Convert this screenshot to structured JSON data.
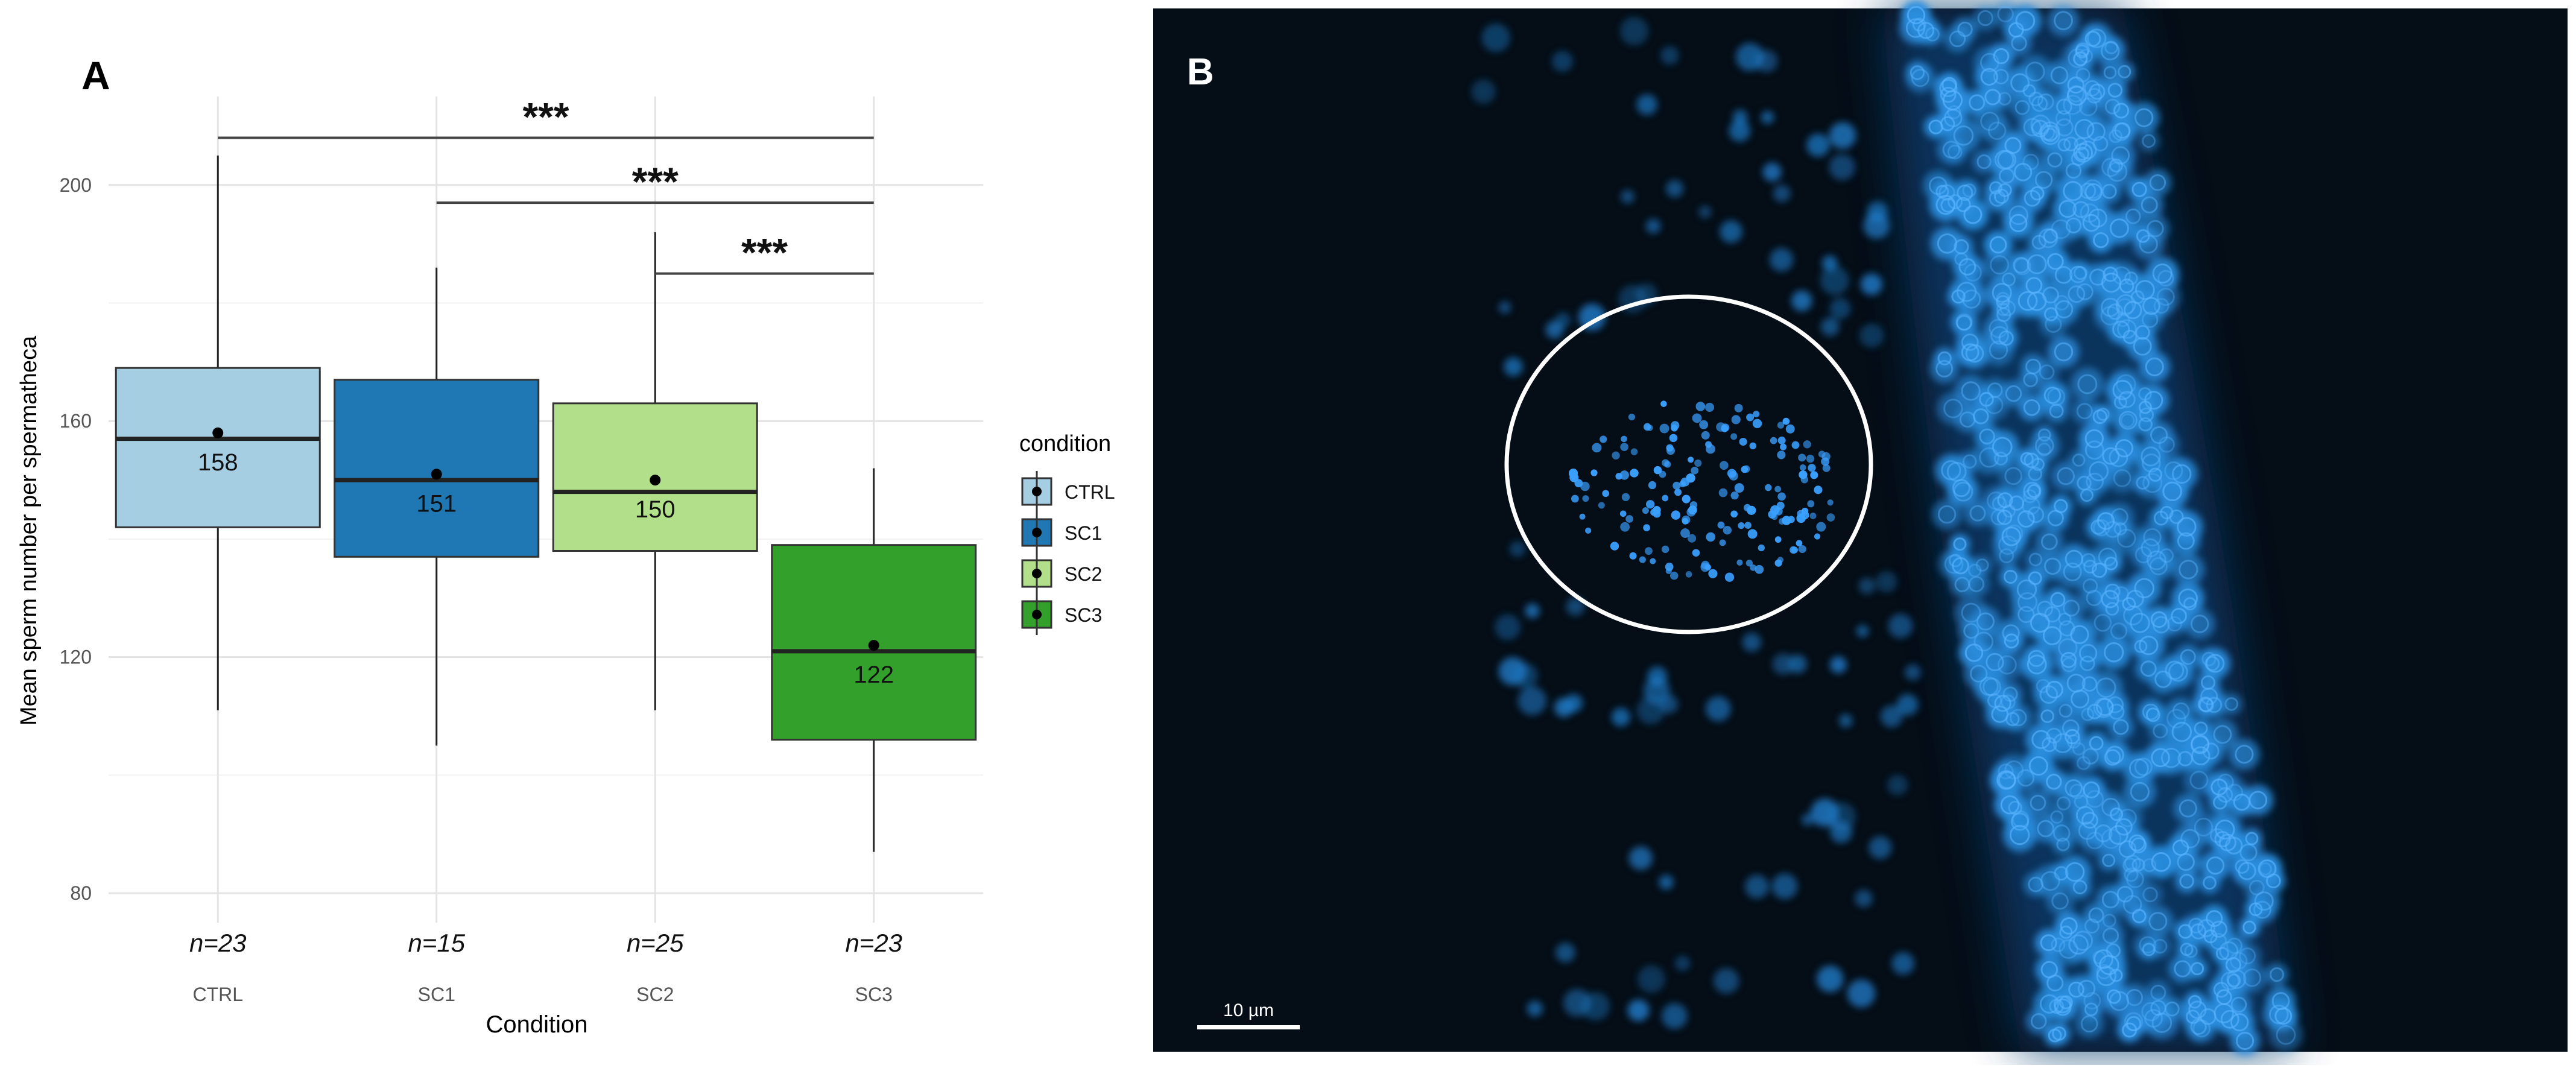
{
  "panels": {
    "a_label": "A",
    "b_label": "B"
  },
  "chart_data": {
    "type": "box",
    "title": "",
    "xlabel": "Condition",
    "ylabel": "Mean sperm number per spermatheca",
    "ylim": [
      75,
      215
    ],
    "yticks": [
      80,
      120,
      160,
      200
    ],
    "grid": true,
    "categories": [
      "CTRL",
      "SC1",
      "SC2",
      "SC3"
    ],
    "boxes": [
      {
        "category": "CTRL",
        "whisker_low": 111,
        "q1": 142,
        "median": 157,
        "q3": 169,
        "whisker_high": 205,
        "mean": 158,
        "mean_label": "158",
        "n_label": "n=23",
        "fill": "#a6cee3"
      },
      {
        "category": "SC1",
        "whisker_low": 105,
        "q1": 137,
        "median": 150,
        "q3": 167,
        "whisker_high": 186,
        "mean": 151,
        "mean_label": "151",
        "n_label": "n=15",
        "fill": "#1f78b4"
      },
      {
        "category": "SC2",
        "whisker_low": 111,
        "q1": 138,
        "median": 148,
        "q3": 163,
        "whisker_high": 192,
        "mean": 150,
        "mean_label": "150",
        "n_label": "n=25",
        "fill": "#b2df8a"
      },
      {
        "category": "SC3",
        "whisker_low": 87,
        "q1": 106,
        "median": 121,
        "q3": 139,
        "whisker_high": 152,
        "mean": 122,
        "mean_label": "122",
        "n_label": "n=23",
        "fill": "#33a02c"
      }
    ],
    "significance": [
      {
        "from": "CTRL",
        "to": "SC3",
        "y": 208,
        "label": "***"
      },
      {
        "from": "SC1",
        "to": "SC3",
        "y": 197,
        "label": "***"
      },
      {
        "from": "SC2",
        "to": "SC3",
        "y": 185,
        "label": "***"
      }
    ],
    "legend": {
      "title": "condition",
      "position": "right",
      "items": [
        {
          "label": "CTRL",
          "fill": "#a6cee3"
        },
        {
          "label": "SC1",
          "fill": "#1f78b4"
        },
        {
          "label": "SC2",
          "fill": "#b2df8a"
        },
        {
          "label": "SC3",
          "fill": "#33a02c"
        }
      ]
    }
  },
  "micrograph": {
    "scale_bar_label": "10 µm",
    "background": "#050d16",
    "nuclei_color": "#1e90ff"
  }
}
